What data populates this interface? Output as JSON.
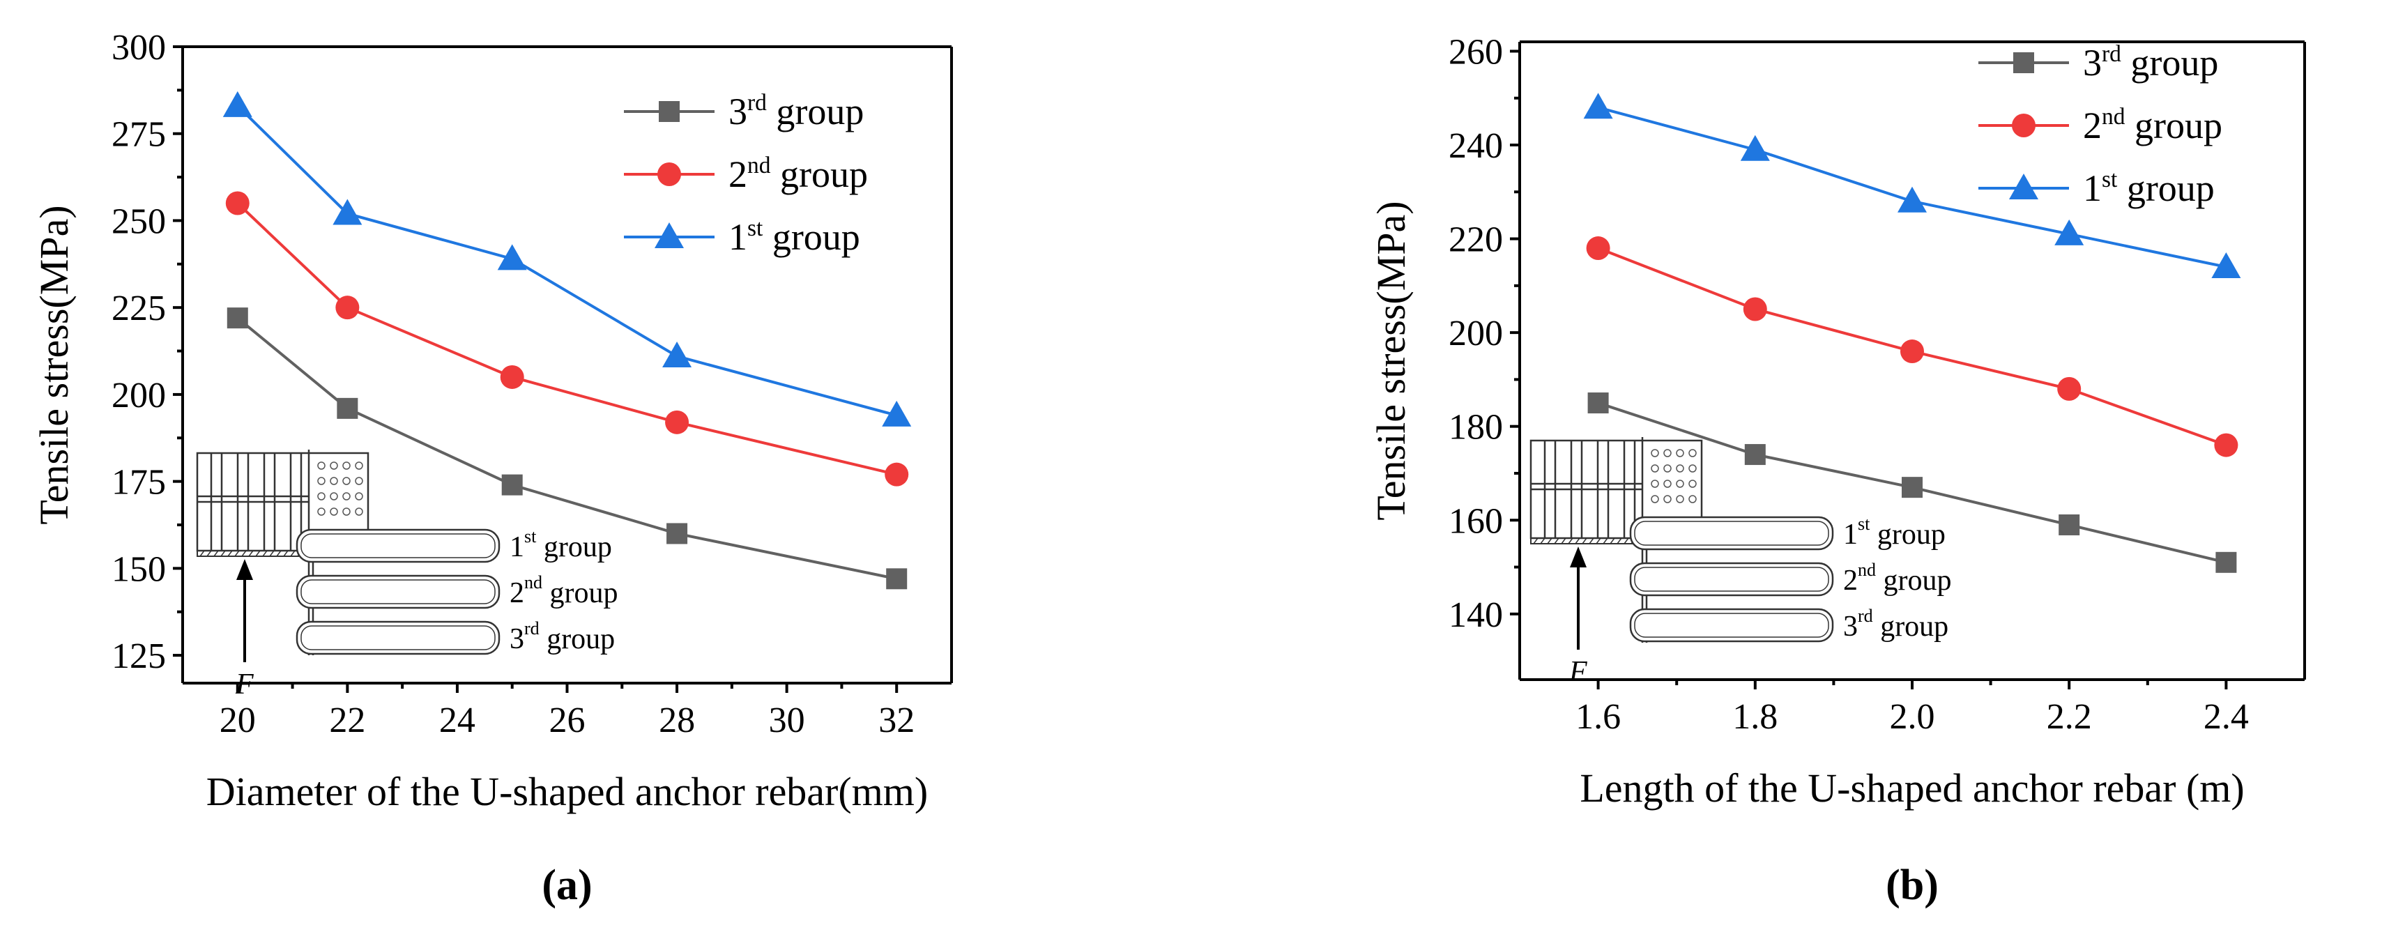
{
  "chart_data": [
    {
      "type": "line",
      "panel": "(a)",
      "x": [
        20,
        22,
        25,
        28,
        32
      ],
      "xlabel": "Diameter of the U-shaped anchor rebar(mm)",
      "ylabel": "Tensile stress(MPa)",
      "xlim": [
        19,
        33
      ],
      "ylim": [
        117,
        300
      ],
      "xticks": [
        20,
        22,
        24,
        26,
        28,
        30,
        32
      ],
      "yticks": [
        125,
        150,
        175,
        200,
        225,
        250,
        275,
        300
      ],
      "legend_position": "top-right",
      "series": [
        {
          "name": "3rd group",
          "base": "3",
          "sup": "rd",
          "rest": " group",
          "color": "#616161",
          "marker": "square",
          "values": [
            222,
            196,
            174,
            160,
            147
          ]
        },
        {
          "name": "2nd group",
          "base": "2",
          "sup": "nd",
          "rest": " group",
          "color": "#ee3a3a",
          "marker": "circle",
          "values": [
            255,
            225,
            205,
            192,
            177
          ]
        },
        {
          "name": "1st group",
          "base": "1",
          "sup": "st",
          "rest": " group",
          "color": "#1f77e0",
          "marker": "triangle",
          "values": [
            283,
            252,
            239,
            211,
            194
          ]
        }
      ]
    },
    {
      "type": "line",
      "panel": "(b)",
      "x": [
        1.6,
        1.8,
        2.0,
        2.2,
        2.4
      ],
      "xlabel": "Length of the U-shaped anchor rebar (m)",
      "ylabel": "Tensile stress(MPa)",
      "xlim": [
        1.5,
        2.5
      ],
      "ylim": [
        126,
        262
      ],
      "xticks": [
        1.6,
        1.8,
        2.0,
        2.2,
        2.4
      ],
      "xtick_labels": [
        "1.6",
        "1.8",
        "2.0",
        "2.2",
        "2.4"
      ],
      "yticks": [
        140,
        160,
        180,
        200,
        220,
        240,
        260
      ],
      "legend_position": "top-right",
      "series": [
        {
          "name": "3rd group",
          "base": "3",
          "sup": "rd",
          "rest": " group",
          "color": "#616161",
          "marker": "square",
          "values": [
            185,
            174,
            167,
            159,
            151
          ]
        },
        {
          "name": "2nd group",
          "base": "2",
          "sup": "nd",
          "rest": " group",
          "color": "#ee3a3a",
          "marker": "circle",
          "values": [
            218,
            205,
            196,
            188,
            176
          ]
        },
        {
          "name": "1st group",
          "base": "1",
          "sup": "st",
          "rest": " group",
          "color": "#1f77e0",
          "marker": "triangle",
          "values": [
            248,
            239,
            228,
            221,
            214
          ]
        }
      ]
    }
  ],
  "inset": {
    "groups": [
      {
        "base": "1",
        "sup": "st",
        "rest": " group"
      },
      {
        "base": "2",
        "sup": "nd",
        "rest": " group"
      },
      {
        "base": "3",
        "sup": "rd",
        "rest": " group"
      }
    ],
    "force_label": "F"
  }
}
